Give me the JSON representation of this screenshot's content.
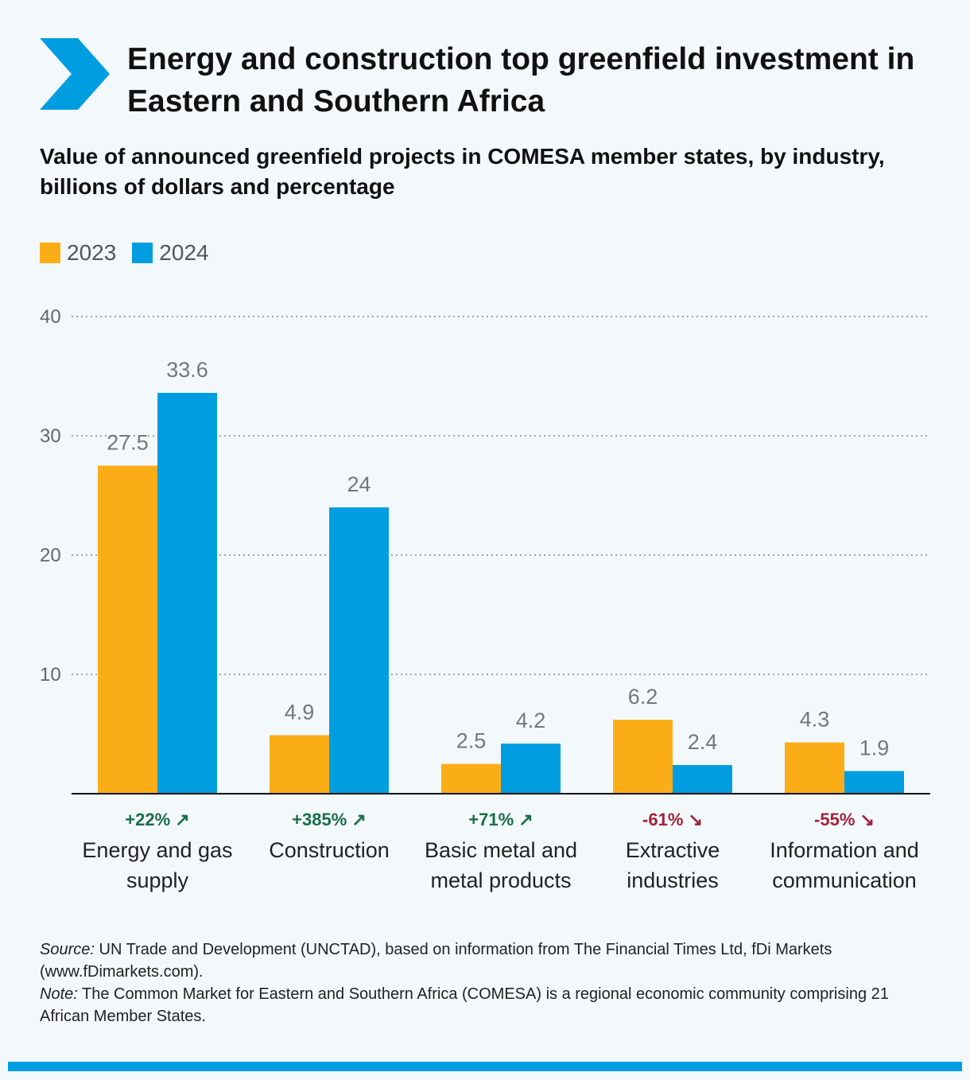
{
  "title": "Energy and construction top greenfield investment in Eastern and Southern Africa",
  "subtitle": "Value of announced greenfield projects in COMESA member states, by industry, billions of dollars and percentage",
  "colors": {
    "s2023": "#fbad18",
    "s2024": "#009ee0",
    "up": "#1a6e4a",
    "down": "#a3213a",
    "chevron": "#009ee0",
    "gridline": "#888888"
  },
  "notes": {
    "source_label": "Source:",
    "source_text": "UN Trade and Development (UNCTAD), based on information from The Financial Times Ltd, fDi Markets (www.fDimarkets.com).",
    "note_label": "Note:",
    "note_text": "The Common Market for Eastern and Southern Africa (COMESA) is a regional economic community comprising 21 African Member States."
  },
  "chart_data": {
    "type": "bar",
    "ylim": [
      0,
      40
    ],
    "yticks": [
      10,
      20,
      30,
      40
    ],
    "grid": true,
    "legend_position": "top-left",
    "categories": [
      [
        "Energy and gas",
        "supply"
      ],
      [
        "Construction"
      ],
      [
        "Basic metal and",
        "metal products"
      ],
      [
        "Extractive",
        "industries"
      ],
      [
        "Information and",
        "communication"
      ]
    ],
    "series": [
      {
        "name": "2023",
        "color": "#fbad18",
        "values": [
          27.5,
          4.9,
          2.5,
          6.2,
          4.3
        ],
        "labels": [
          "27.5",
          "4.9",
          "2.5",
          "6.2",
          "4.3"
        ]
      },
      {
        "name": "2024",
        "color": "#009ee0",
        "values": [
          33.6,
          24,
          4.2,
          2.4,
          1.9
        ],
        "labels": [
          "33.6",
          "24",
          "4.2",
          "2.4",
          "1.9"
        ]
      }
    ],
    "changes": [
      {
        "text": "+22% ↗",
        "direction": "up"
      },
      {
        "text": "+385% ↗",
        "direction": "up"
      },
      {
        "text": "+71% ↗",
        "direction": "up"
      },
      {
        "text": "-61% ↘",
        "direction": "down"
      },
      {
        "text": "-55% ↘",
        "direction": "down"
      }
    ]
  }
}
